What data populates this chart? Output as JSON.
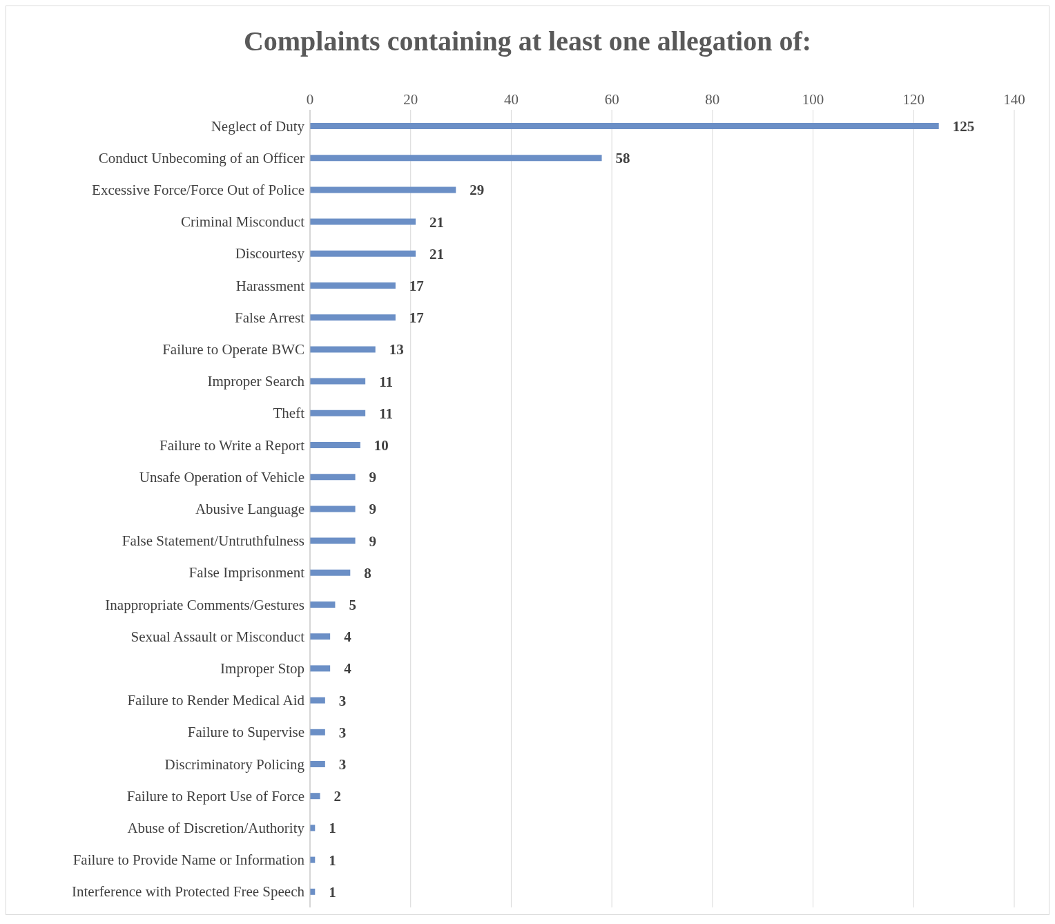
{
  "chart_data": {
    "type": "bar",
    "orientation": "horizontal",
    "title": "Complaints containing at least one allegation of:",
    "categories": [
      "Neglect of Duty",
      "Conduct Unbecoming of an Officer",
      "Excessive Force/Force Out of Police",
      "Criminal Misconduct",
      "Discourtesy",
      "Harassment",
      "False Arrest",
      "Failure to Operate BWC",
      "Improper Search",
      "Theft",
      "Failure to Write a Report",
      "Unsafe Operation of  Vehicle",
      "Abusive Language",
      "False Statement/Untruthfulness",
      "False Imprisonment",
      "Inappropriate Comments/Gestures",
      "Sexual Assault or Misconduct",
      "Improper Stop",
      "Failure to Render Medical Aid",
      "Failure to Supervise",
      "Discriminatory Policing",
      "Failure to Report Use of Force",
      "Abuse of Discretion/Authority",
      "Failure to Provide Name or Information",
      "Interference with Protected Free Speech"
    ],
    "values": [
      125,
      58,
      29,
      21,
      21,
      17,
      17,
      13,
      11,
      11,
      10,
      9,
      9,
      9,
      8,
      5,
      4,
      4,
      3,
      3,
      3,
      2,
      1,
      1,
      1
    ],
    "color": "#6b8fc6",
    "xlim": [
      0,
      140
    ],
    "xticks": [
      0,
      20,
      40,
      60,
      80,
      100,
      120,
      140
    ],
    "grid": "x",
    "data_labels": true,
    "legend": false
  }
}
